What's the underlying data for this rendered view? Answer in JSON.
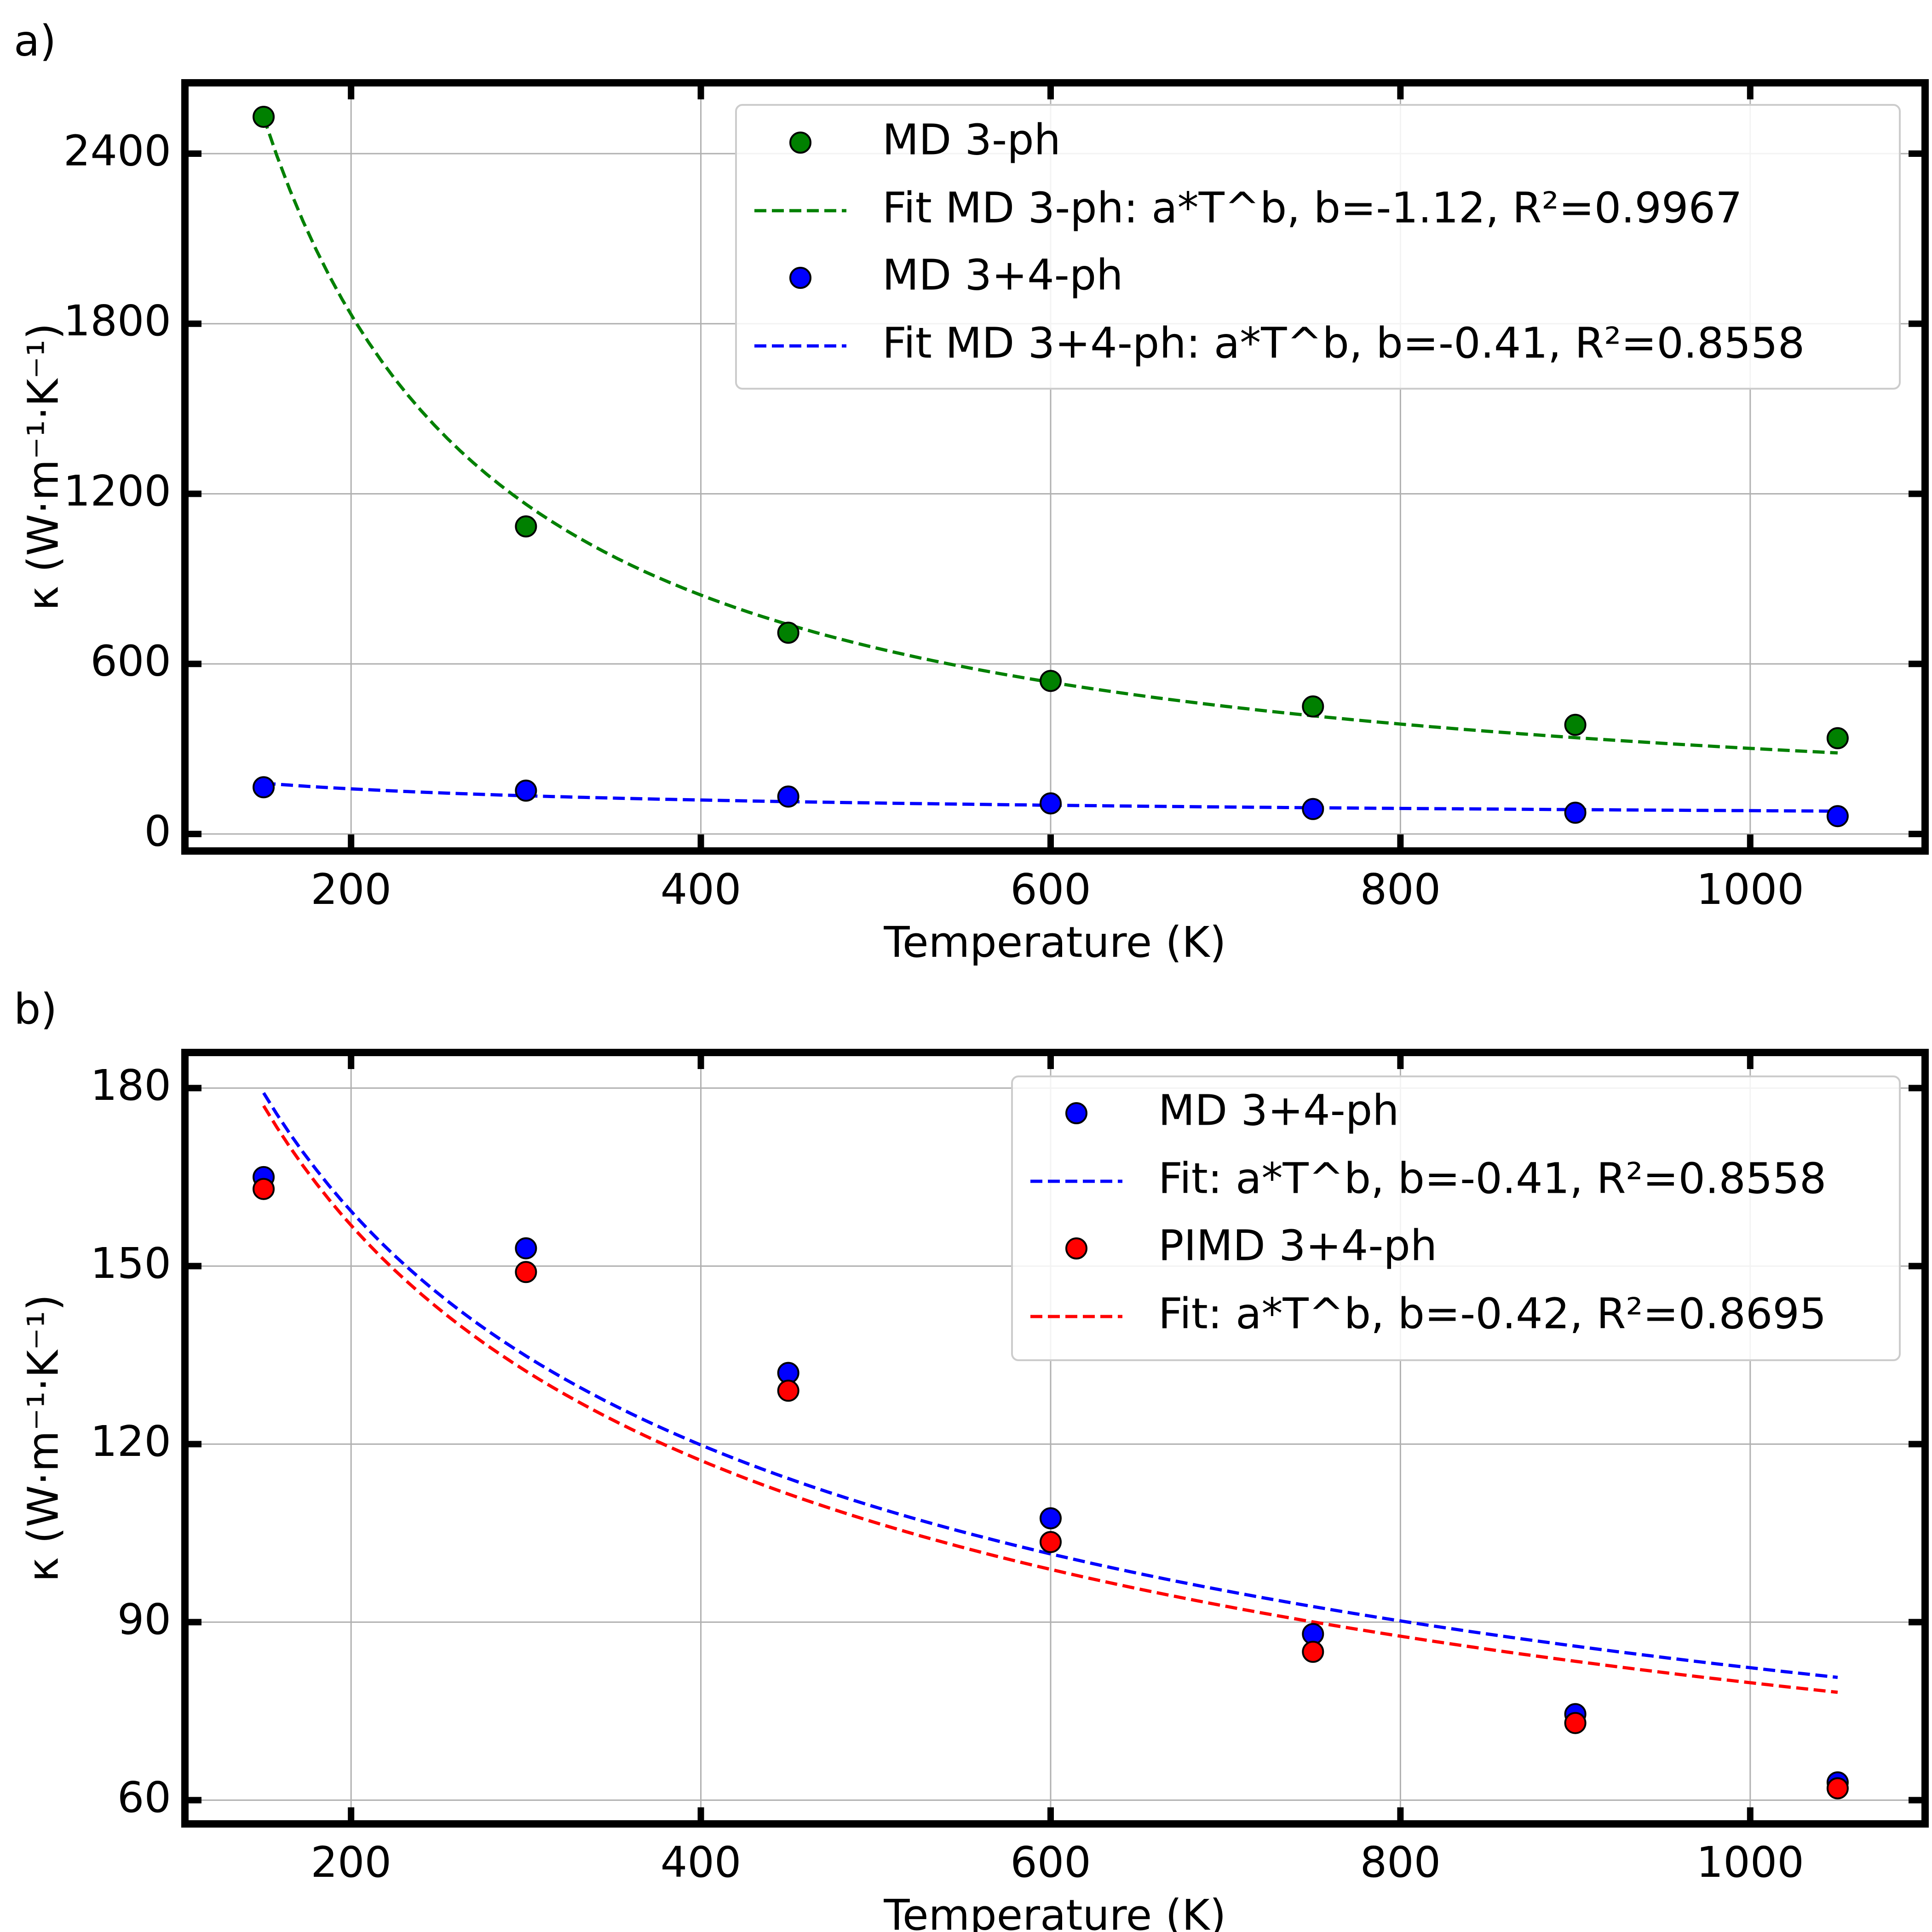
{
  "chart_data": [
    {
      "panel_label": "a)",
      "type": "scatter",
      "xlabel": "Temperature (K)",
      "ylabel": "κ (W·m⁻¹·K⁻¹)",
      "xlim": [
        105,
        1100
      ],
      "ylim": [
        -60,
        2650
      ],
      "xticks": [
        200,
        400,
        600,
        800,
        1000
      ],
      "yticks": [
        0,
        600,
        1200,
        1800,
        2400
      ],
      "grid": true,
      "legend_position": "top-right",
      "series": [
        {
          "name": "MD 3-ph",
          "kind": "points",
          "color": "#008000",
          "x": [
            150,
            300,
            450,
            600,
            750,
            900,
            1050
          ],
          "y": [
            2530,
            1085,
            710,
            540,
            450,
            385,
            338
          ]
        },
        {
          "name": "Fit MD 3-ph: a*T^b, b=-1.12, R²=0.9967",
          "kind": "fit",
          "color": "#008000",
          "a": 692000,
          "b": -1.12,
          "x_range": [
            150,
            1050
          ]
        },
        {
          "name": "MD 3+4-ph",
          "kind": "points",
          "color": "#0000ff",
          "x": [
            150,
            300,
            450,
            600,
            750,
            900,
            1050
          ],
          "y": [
            165,
            153,
            132,
            108,
            88,
            75,
            63
          ]
        },
        {
          "name": "Fit MD 3+4-ph: a*T^b, b=-0.41, R²=0.8558",
          "kind": "fit",
          "color": "#0000ff",
          "a": 1398,
          "b": -0.41,
          "x_range": [
            150,
            1050
          ]
        }
      ]
    },
    {
      "panel_label": "b)",
      "type": "scatter",
      "xlabel": "Temperature (K)",
      "ylabel": "κ (W·m⁻¹·K⁻¹)",
      "xlim": [
        105,
        1100
      ],
      "ylim": [
        56,
        186
      ],
      "xticks": [
        200,
        400,
        600,
        800,
        1000
      ],
      "yticks": [
        60,
        90,
        120,
        150,
        180
      ],
      "grid": true,
      "legend_position": "top-right",
      "series": [
        {
          "name": "MD 3+4-ph",
          "kind": "points",
          "color": "#0000ff",
          "x": [
            150,
            300,
            450,
            600,
            750,
            900,
            1050
          ],
          "y": [
            165,
            153,
            132,
            107.5,
            88,
            74.5,
            63
          ]
        },
        {
          "name": "Fit: a*T^b, b=-0.41, R²=0.8558",
          "kind": "fit",
          "color": "#0000ff",
          "a": 1398,
          "b": -0.41,
          "x_range": [
            150,
            1050
          ]
        },
        {
          "name": "PIMD 3+4-ph",
          "kind": "points",
          "color": "#ff0000",
          "x": [
            150,
            300,
            450,
            600,
            750,
            900,
            1050
          ],
          "y": [
            163,
            149,
            129,
            103.5,
            85,
            73,
            62
          ]
        },
        {
          "name": "Fit: a*T^b, b=-0.42, R²=0.8695",
          "kind": "fit",
          "color": "#ff0000",
          "a": 1452,
          "b": -0.42,
          "x_range": [
            150,
            1050
          ]
        }
      ]
    }
  ]
}
